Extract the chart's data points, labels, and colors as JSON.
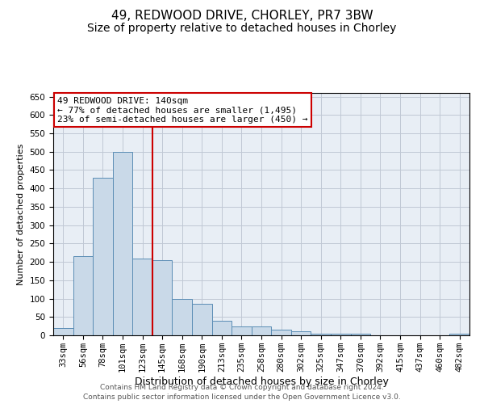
{
  "title": "49, REDWOOD DRIVE, CHORLEY, PR7 3BW",
  "subtitle": "Size of property relative to detached houses in Chorley",
  "xlabel": "Distribution of detached houses by size in Chorley",
  "ylabel": "Number of detached properties",
  "categories": [
    "33sqm",
    "56sqm",
    "78sqm",
    "101sqm",
    "123sqm",
    "145sqm",
    "168sqm",
    "190sqm",
    "213sqm",
    "235sqm",
    "258sqm",
    "280sqm",
    "302sqm",
    "325sqm",
    "347sqm",
    "370sqm",
    "392sqm",
    "415sqm",
    "437sqm",
    "460sqm",
    "482sqm"
  ],
  "values": [
    20,
    215,
    430,
    500,
    210,
    205,
    100,
    85,
    40,
    25,
    25,
    15,
    10,
    5,
    5,
    4,
    1,
    0,
    0,
    0,
    5
  ],
  "bar_color": "#c9d9e8",
  "bar_edge_color": "#5b8db5",
  "bar_linewidth": 0.7,
  "vline_index": 4.5,
  "vline_color": "#cc0000",
  "vline_linewidth": 1.5,
  "annotation_line1": "49 REDWOOD DRIVE: 140sqm",
  "annotation_line2": "← 77% of detached houses are smaller (1,495)",
  "annotation_line3": "23% of semi-detached houses are larger (450) →",
  "annotation_box_color": "#ffffff",
  "annotation_box_edge_color": "#cc0000",
  "ylim": [
    0,
    660
  ],
  "yticks": [
    0,
    50,
    100,
    150,
    200,
    250,
    300,
    350,
    400,
    450,
    500,
    550,
    600,
    650
  ],
  "grid_color": "#c0c8d5",
  "background_color": "#e8eef5",
  "footer_line1": "Contains HM Land Registry data © Crown copyright and database right 2024.",
  "footer_line2": "Contains public sector information licensed under the Open Government Licence v3.0.",
  "title_fontsize": 11,
  "subtitle_fontsize": 10,
  "xlabel_fontsize": 9,
  "ylabel_fontsize": 8,
  "tick_fontsize": 7.5,
  "annotation_fontsize": 8,
  "footer_fontsize": 6.5
}
